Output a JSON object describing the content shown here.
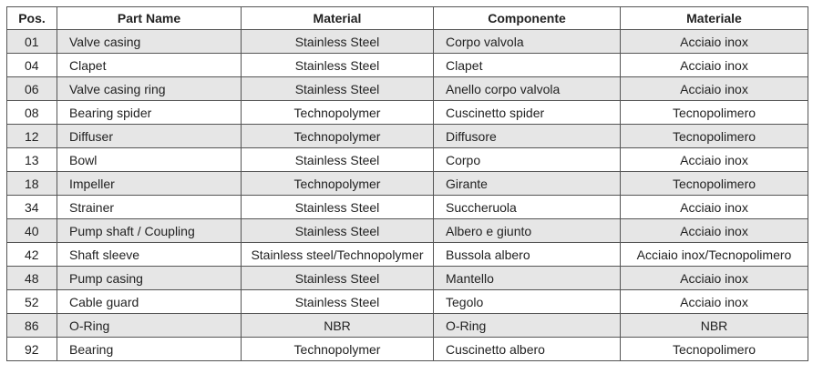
{
  "table": {
    "header": [
      "Pos.",
      "Part Name",
      "Material",
      "Componente",
      "Materiale"
    ],
    "rows": [
      [
        "01",
        "Valve casing",
        "Stainless Steel",
        "Corpo valvola",
        "Acciaio inox"
      ],
      [
        "04",
        "Clapet",
        "Stainless Steel",
        "Clapet",
        "Acciaio inox"
      ],
      [
        "06",
        "Valve casing ring",
        "Stainless Steel",
        "Anello corpo valvola",
        "Acciaio inox"
      ],
      [
        "08",
        "Bearing spider",
        "Technopolymer",
        "Cuscinetto spider",
        "Tecnopolimero"
      ],
      [
        "12",
        "Diffuser",
        "Technopolymer",
        "Diffusore",
        "Tecnopolimero"
      ],
      [
        "13",
        "Bowl",
        "Stainless Steel",
        "Corpo",
        "Acciaio inox"
      ],
      [
        "18",
        "Impeller",
        "Technopolymer",
        "Girante",
        "Tecnopolimero"
      ],
      [
        "34",
        "Strainer",
        "Stainless Steel",
        "Succheruola",
        "Acciaio inox"
      ],
      [
        "40",
        "Pump shaft / Coupling",
        "Stainless Steel",
        "Albero e giunto",
        "Acciaio inox"
      ],
      [
        "42",
        "Shaft sleeve",
        "Stainless steel/Technopolymer",
        "Bussola albero",
        "Acciaio inox/Tecnopolimero"
      ],
      [
        "48",
        "Pump casing",
        "Stainless Steel",
        "Mantello",
        "Acciaio inox"
      ],
      [
        "52",
        "Cable guard",
        "Stainless Steel",
        "Tegolo",
        "Acciaio inox"
      ],
      [
        "86",
        "O-Ring",
        "NBR",
        "O-Ring",
        "NBR"
      ],
      [
        "92",
        "Bearing",
        "Technopolymer",
        "Cuscinetto albero",
        "Tecnopolimero"
      ]
    ]
  }
}
